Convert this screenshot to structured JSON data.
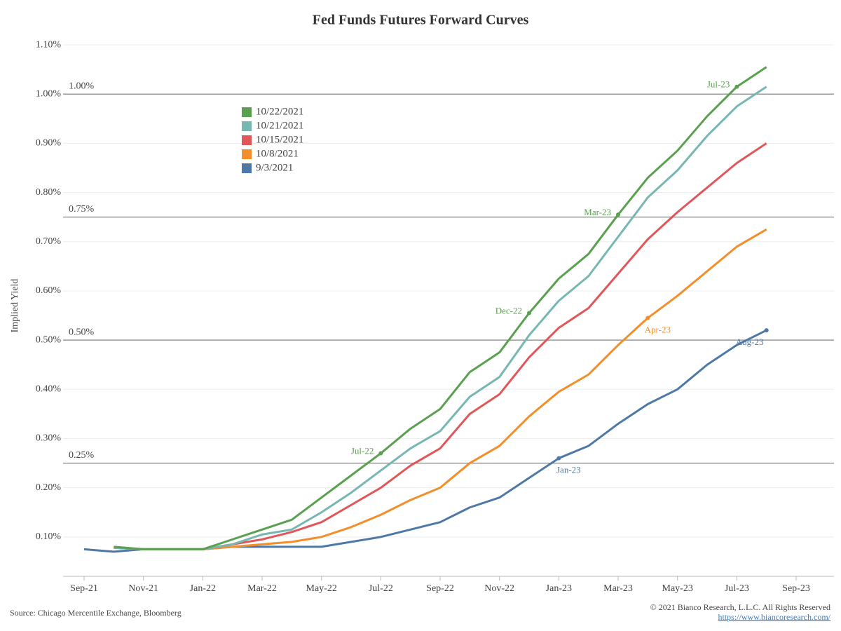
{
  "chart_data": {
    "type": "line",
    "title": "Fed Funds Futures Forward Curves",
    "y_label": "Implied Yield",
    "source": "Source: Chicago Mercentile Exchange, Bloomberg",
    "copyright": "© 2021 Bianco Research, L.L.C. All Rights Reserved",
    "url": "https://www.biancoresearch.com/",
    "categories": [
      "Sep-21",
      null,
      "Nov-21",
      null,
      "Jan-22",
      null,
      "Mar-22",
      null,
      "May-22",
      null,
      "Jul-22",
      null,
      "Sep-22",
      null,
      "Nov-22",
      null,
      "Jan-23",
      null,
      "Mar-23",
      null,
      "May-23",
      null,
      "Jul-23",
      null,
      "Sep-23"
    ],
    "ylim": [
      0.02,
      1.12
    ],
    "yticks": [
      {
        "value": 0.1,
        "label": "0.10%"
      },
      {
        "value": 0.2,
        "label": "0.20%"
      },
      {
        "value": 0.3,
        "label": "0.30%"
      },
      {
        "value": 0.4,
        "label": "0.40%"
      },
      {
        "value": 0.5,
        "label": "0.50%"
      },
      {
        "value": 0.6,
        "label": "0.60%"
      },
      {
        "value": 0.7,
        "label": "0.70%"
      },
      {
        "value": 0.8,
        "label": "0.80%"
      },
      {
        "value": 0.9,
        "label": "0.90%"
      },
      {
        "value": 1.0,
        "label": "1.00%"
      },
      {
        "value": 1.1,
        "label": "1.10%"
      }
    ],
    "grid": true,
    "reference_lines": [
      {
        "value": 0.25,
        "label": "0.25%"
      },
      {
        "value": 0.5,
        "label": "0.50%"
      },
      {
        "value": 0.75,
        "label": "0.75%"
      },
      {
        "value": 1.0,
        "label": "1.00%"
      }
    ],
    "legend": "upper-left",
    "series": [
      {
        "name": "10/22/2021",
        "color": "#59a14f",
        "values": [
          null,
          0.08,
          0.075,
          0.075,
          0.075,
          0.095,
          0.115,
          0.135,
          0.18,
          0.225,
          0.27,
          0.32,
          0.36,
          0.435,
          0.475,
          0.555,
          0.625,
          0.675,
          0.755,
          0.83,
          0.885,
          0.955,
          1.015,
          1.055,
          null
        ]
      },
      {
        "name": "10/21/2021",
        "color": "#76b7b2",
        "values": [
          null,
          0.078,
          0.075,
          0.075,
          0.075,
          0.085,
          0.105,
          0.115,
          0.15,
          0.19,
          0.235,
          0.28,
          0.315,
          0.385,
          0.425,
          0.51,
          0.58,
          0.63,
          0.71,
          0.79,
          0.845,
          0.915,
          0.975,
          1.015,
          null
        ]
      },
      {
        "name": "10/15/2021",
        "color": "#e15759",
        "values": [
          null,
          0.078,
          0.075,
          0.075,
          0.075,
          0.085,
          0.095,
          0.11,
          0.13,
          0.165,
          0.2,
          0.245,
          0.28,
          0.35,
          0.39,
          0.465,
          0.525,
          0.565,
          0.635,
          0.705,
          0.76,
          0.81,
          0.86,
          0.9,
          null
        ]
      },
      {
        "name": "10/8/2021",
        "color": "#f28e2b",
        "values": [
          null,
          0.078,
          0.075,
          0.075,
          0.075,
          0.08,
          0.085,
          0.09,
          0.1,
          0.12,
          0.145,
          0.175,
          0.2,
          0.25,
          0.285,
          0.345,
          0.395,
          0.43,
          0.49,
          0.545,
          0.59,
          0.64,
          0.69,
          0.725,
          null
        ]
      },
      {
        "name": "9/3/2021",
        "color": "#4e79a7",
        "values": [
          0.075,
          0.07,
          0.075,
          0.075,
          0.075,
          0.08,
          0.08,
          0.08,
          0.08,
          0.09,
          0.1,
          0.115,
          0.13,
          0.16,
          0.18,
          0.22,
          0.26,
          0.285,
          0.33,
          0.37,
          0.4,
          0.45,
          0.49,
          0.52,
          null
        ]
      }
    ],
    "annotations": [
      {
        "label": "Jul-22",
        "series": 0,
        "index": 10
      },
      {
        "label": "Dec-22",
        "series": 0,
        "index": 15
      },
      {
        "label": "Mar-23",
        "series": 0,
        "index": 18
      },
      {
        "label": "Jul-23",
        "series": 0,
        "index": 22
      },
      {
        "label": "Apr-23",
        "series": 3,
        "index": 19
      },
      {
        "label": "Jan-23",
        "series": 4,
        "index": 16
      },
      {
        "label": "Aug-23",
        "series": 4,
        "index": 23
      }
    ]
  }
}
